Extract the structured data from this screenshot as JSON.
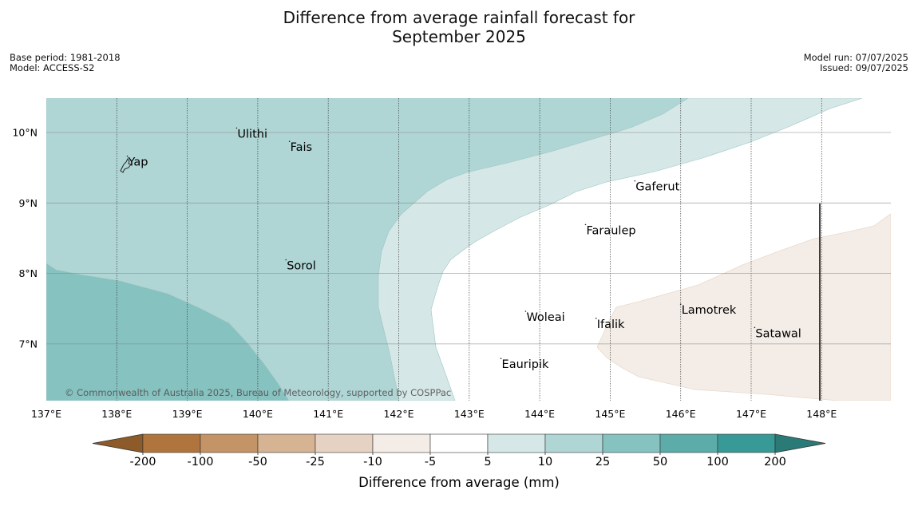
{
  "title": {
    "line1": "Difference from average rainfall forecast for",
    "line2": "September 2025"
  },
  "meta_left": {
    "base_period": "Base period: 1981-2018",
    "model": "Model: ACCESS-S2"
  },
  "meta_right": {
    "model_run": "Model run: 07/07/2025",
    "issued": "Issued: 09/07/2025"
  },
  "map": {
    "lon_range": [
      137,
      149
    ],
    "lat_range": [
      6.2,
      10.5
    ],
    "x_ticks": [
      {
        "value": 137,
        "label": "137°E"
      },
      {
        "value": 138,
        "label": "138°E"
      },
      {
        "value": 139,
        "label": "139°E"
      },
      {
        "value": 140,
        "label": "140°E"
      },
      {
        "value": 141,
        "label": "141°E"
      },
      {
        "value": 142,
        "label": "142°E"
      },
      {
        "value": 143,
        "label": "143°E"
      },
      {
        "value": 144,
        "label": "144°E"
      },
      {
        "value": 145,
        "label": "145°E"
      },
      {
        "value": 146,
        "label": "146°E"
      },
      {
        "value": 147,
        "label": "147°E"
      },
      {
        "value": 148,
        "label": "148°E"
      }
    ],
    "y_ticks": [
      {
        "value": 10,
        "label": "10°N"
      },
      {
        "value": 9,
        "label": "9°N"
      },
      {
        "value": 8,
        "label": "8°N"
      },
      {
        "value": 7,
        "label": "7°N"
      }
    ],
    "places": [
      {
        "name": "Yap",
        "lon": 138.15,
        "lat": 9.55
      },
      {
        "name": "Ulithi",
        "lon": 139.7,
        "lat": 9.95
      },
      {
        "name": "Fais",
        "lon": 140.45,
        "lat": 9.76
      },
      {
        "name": "Gaferut",
        "lon": 145.35,
        "lat": 9.2
      },
      {
        "name": "Faraulep",
        "lon": 144.65,
        "lat": 8.58
      },
      {
        "name": "Sorol",
        "lon": 140.4,
        "lat": 8.08
      },
      {
        "name": "Woleai",
        "lon": 143.8,
        "lat": 7.35
      },
      {
        "name": "Ifalik",
        "lon": 144.8,
        "lat": 7.25
      },
      {
        "name": "Lamotrek",
        "lon": 146.0,
        "lat": 7.45
      },
      {
        "name": "Satawal",
        "lon": 147.05,
        "lat": 7.12
      },
      {
        "name": "Eauripik",
        "lon": 143.45,
        "lat": 6.68
      }
    ],
    "copyright": "© Commonwealth of Australia 2025, Bureau of Meteorology, supported by COSPPac"
  },
  "colorbar": {
    "title": "Difference from average (mm)",
    "tick_labels": [
      "-200",
      "-100",
      "-50",
      "-25",
      "-10",
      "-5",
      "5",
      "10",
      "25",
      "50",
      "100",
      "200"
    ],
    "colors": [
      "#8d5a2a",
      "#b0753d",
      "#c49467",
      "#d6b392",
      "#e6d2c2",
      "#f4ede7",
      "#ffffff",
      "#d5e8e7",
      "#afd6d5",
      "#86c2c0",
      "#5cacaa",
      "#379a97",
      "#2a7a77"
    ]
  },
  "colors": {
    "wet_10_25": "#afd6d5",
    "wet_25_50": "#86c2c0",
    "wet_5_10": "#d5e8e7",
    "dry_5_10": "#f4ede7"
  }
}
